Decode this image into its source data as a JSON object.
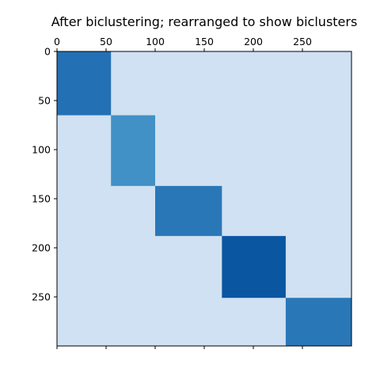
{
  "chart_data": {
    "type": "heatmap",
    "title": "After biclustering; rearranged to show biclusters",
    "xlabel": "",
    "ylabel": "",
    "xlim": [
      0,
      300
    ],
    "ylim": [
      300,
      0
    ],
    "x_ticks": [
      0,
      50,
      100,
      150,
      200,
      250
    ],
    "y_ticks": [
      0,
      50,
      100,
      150,
      200,
      250
    ],
    "x_tick_labels": [
      "0",
      "50",
      "100",
      "150",
      "200",
      "250"
    ],
    "y_tick_labels": [
      "0",
      "50",
      "100",
      "150",
      "200",
      "250"
    ],
    "x_tick_position": "top",
    "background_color": "#cfe1f2",
    "colormap": "Blues",
    "biclusters": [
      {
        "rows": [
          0,
          65
        ],
        "cols": [
          0,
          55
        ],
        "color": "#2470b5"
      },
      {
        "rows": [
          65,
          137
        ],
        "cols": [
          55,
          100
        ],
        "color": "#4191c6"
      },
      {
        "rows": [
          137,
          188
        ],
        "cols": [
          100,
          168
        ],
        "color": "#2a77b8"
      },
      {
        "rows": [
          188,
          251
        ],
        "cols": [
          168,
          233
        ],
        "color": "#0b56a0"
      },
      {
        "rows": [
          251,
          300
        ],
        "cols": [
          233,
          300
        ],
        "color": "#2a77b8"
      }
    ]
  }
}
